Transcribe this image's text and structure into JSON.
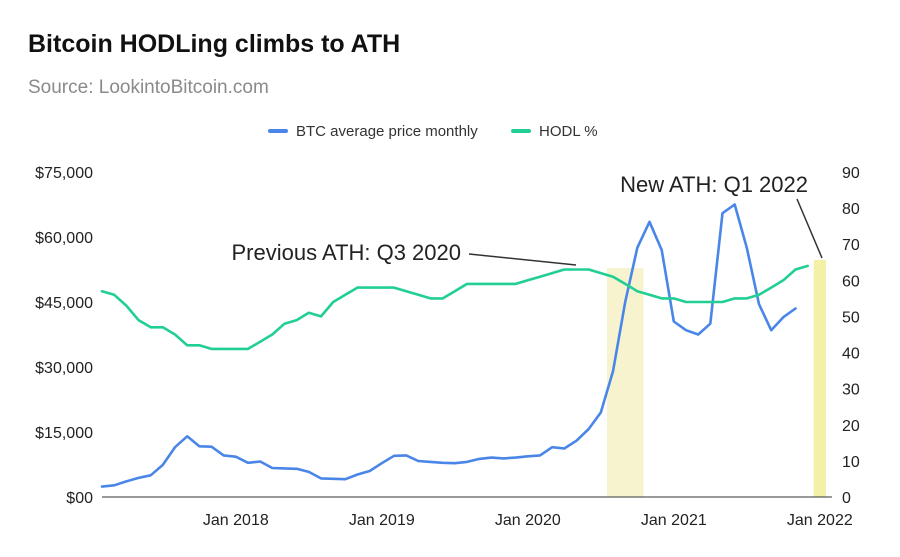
{
  "title": "Bitcoin HODLing climbs to ATH",
  "subtitle": "Source: LookintoBitcoin.com",
  "chart_data": {
    "type": "line",
    "title": "Bitcoin HODLing climbs to ATH",
    "subtitle": "Source: LookintoBitcoin.com",
    "legend": {
      "placement": "top-center"
    },
    "grid": false,
    "x_ticks": [
      "Jan 2018",
      "Jan 2019",
      "Jan 2020",
      "Jan 2021",
      "Jan 2022"
    ],
    "x": [
      "2017-02",
      "2017-03",
      "2017-04",
      "2017-05",
      "2017-06",
      "2017-07",
      "2017-08",
      "2017-09",
      "2017-10",
      "2017-11",
      "2017-12",
      "2018-01",
      "2018-02",
      "2018-03",
      "2018-04",
      "2018-05",
      "2018-06",
      "2018-07",
      "2018-08",
      "2018-09",
      "2018-10",
      "2018-11",
      "2018-12",
      "2019-01",
      "2019-02",
      "2019-03",
      "2019-04",
      "2019-05",
      "2019-06",
      "2019-07",
      "2019-08",
      "2019-09",
      "2019-10",
      "2019-11",
      "2019-12",
      "2020-01",
      "2020-02",
      "2020-03",
      "2020-04",
      "2020-05",
      "2020-06",
      "2020-07",
      "2020-08",
      "2020-09",
      "2020-10",
      "2020-11",
      "2020-12",
      "2021-01",
      "2021-02",
      "2021-03",
      "2021-04",
      "2021-05",
      "2021-06",
      "2021-07",
      "2021-08",
      "2021-09",
      "2021-10",
      "2021-11",
      "2021-12",
      "2022-01",
      "2022-02"
    ],
    "y_left": {
      "ticks": [
        "$00",
        "$15,000",
        "$30,000",
        "$45,000",
        "$60,000",
        "$75,000"
      ],
      "ylim": [
        0,
        75000
      ]
    },
    "y_right": {
      "ticks": [
        "0",
        "10",
        "20",
        "30",
        "40",
        "50",
        "60",
        "70",
        "80",
        "90"
      ],
      "ylim": [
        0,
        90
      ]
    },
    "series": [
      {
        "name": "BTC average price monthly",
        "axis": "left",
        "color": "#4a86e8",
        "values": [
          2400,
          2700,
          3600,
          4400,
          5000,
          7400,
          11500,
          14000,
          11700,
          11600,
          9600,
          9300,
          7900,
          8200,
          6700,
          6600,
          6500,
          5800,
          4300,
          4200,
          4100,
          5200,
          6000,
          7800,
          9500,
          9600,
          8300,
          8100,
          7900,
          7800,
          8100,
          8800,
          9100,
          8900,
          9100,
          9400,
          9600,
          11500,
          11200,
          13000,
          15700,
          19500,
          29000,
          45000,
          57500,
          63500,
          57000,
          40500,
          38500,
          37500,
          40000,
          65500,
          67500,
          57500,
          44500,
          38500,
          41500,
          43500,
          null,
          null,
          null
        ]
      },
      {
        "name": "HODL %",
        "axis": "right",
        "color": "#22cf93",
        "values": [
          57,
          56,
          53,
          49,
          47,
          47,
          45,
          42,
          42,
          41,
          41,
          41,
          41,
          43,
          45,
          48,
          49,
          51,
          50,
          54,
          56,
          58,
          58,
          58,
          58,
          57,
          56,
          55,
          55,
          57,
          59,
          59,
          59,
          59,
          59,
          60,
          61,
          62,
          63,
          63,
          63,
          62,
          61,
          59,
          57,
          56,
          55,
          55,
          54,
          54,
          54,
          54,
          55,
          55,
          56,
          58,
          60,
          63,
          64,
          null,
          null
        ]
      }
    ],
    "highlights": [
      {
        "label": "Previous ATH: Q3 2020",
        "x_start": "2020-08",
        "x_end": "2020-10",
        "color": "#f7f3cf"
      },
      {
        "label": "New ATH: Q1 2022",
        "x_start": "2022-01",
        "x_end": "2022-01",
        "color": "#f4f0a6"
      }
    ]
  }
}
